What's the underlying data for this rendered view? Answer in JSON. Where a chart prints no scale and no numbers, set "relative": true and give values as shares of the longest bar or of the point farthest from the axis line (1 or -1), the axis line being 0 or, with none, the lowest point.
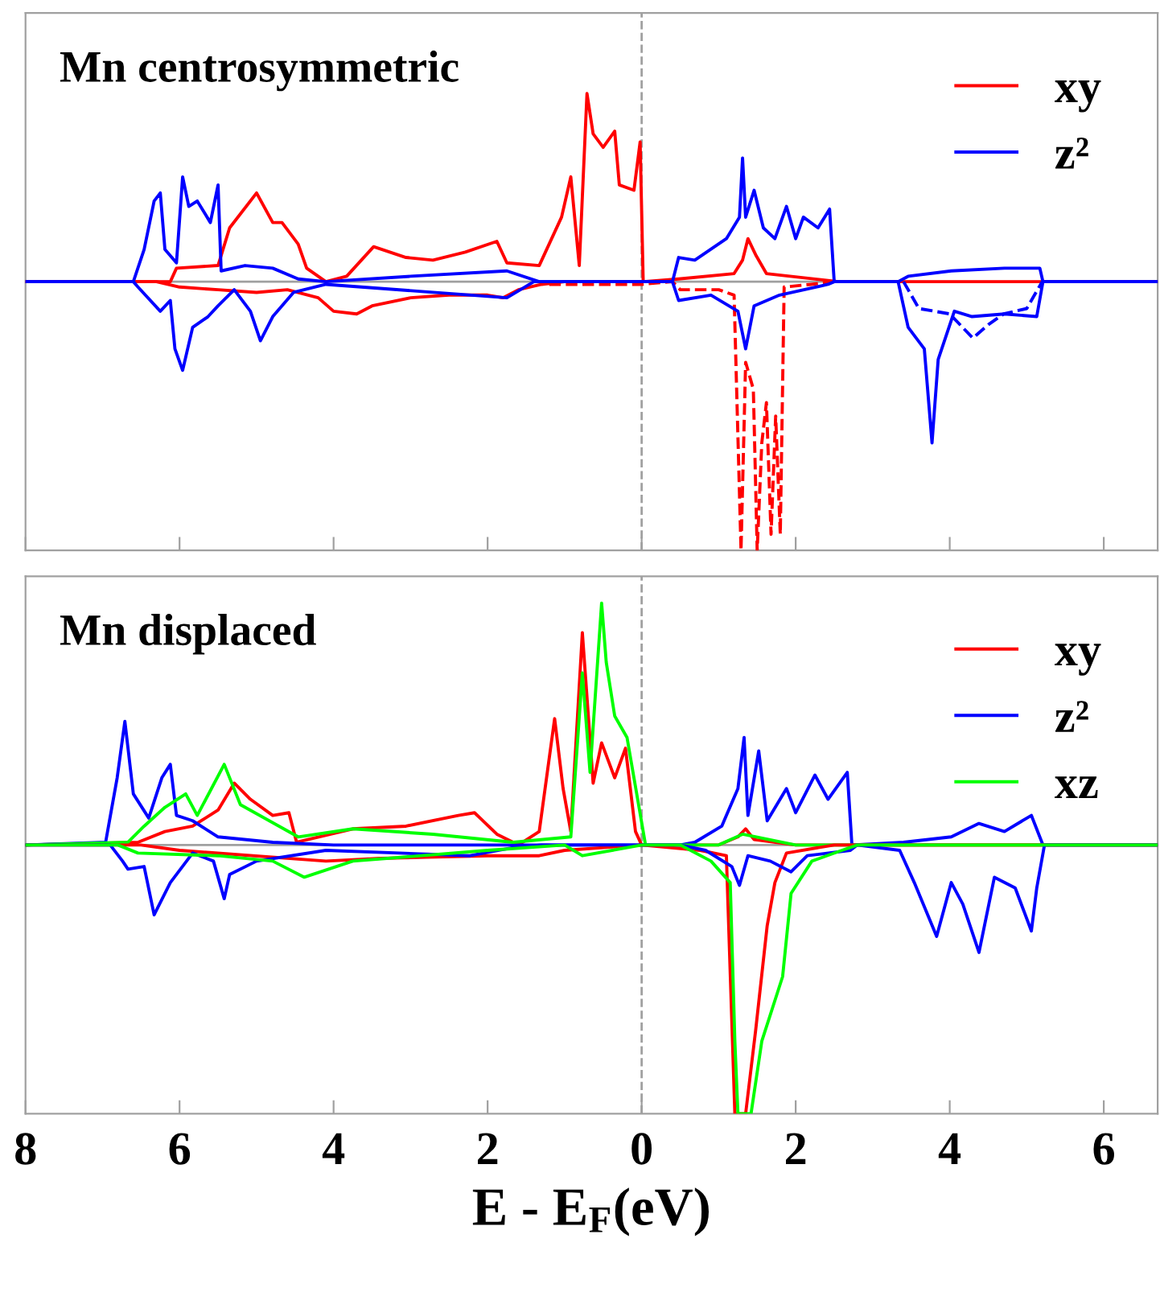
{
  "chart_data": [
    {
      "type": "line",
      "title": "Mn centrosymmetric",
      "relative": true,
      "xlim": [
        -8,
        6.7
      ],
      "xticks": [
        {
          "value": -8,
          "label": null
        },
        {
          "value": -6,
          "label": null
        },
        {
          "value": -4,
          "label": null
        },
        {
          "value": -2,
          "label": null
        },
        {
          "value": 0,
          "label": null
        },
        {
          "value": 2,
          "label": null
        },
        {
          "value": 4,
          "label": null
        },
        {
          "value": 6,
          "label": null
        }
      ],
      "tick_labels": false,
      "grid": false,
      "legend": "top right",
      "ref_lines": [
        {
          "axis": "y",
          "value": 0,
          "color": "#a0a0a0",
          "line_style": "solid"
        },
        {
          "axis": "x",
          "value": 0,
          "color": "#a0a0a0",
          "line_style": "dashed"
        }
      ],
      "series": [
        {
          "name": "xy",
          "color": "#ff0000",
          "line_style": "solid",
          "x": [
            -8,
            -6.12,
            -6.04,
            -5.5,
            -5.35,
            -5.0,
            -4.79,
            -4.67,
            -4.46,
            -4.35,
            -4.1,
            -3.83,
            -3.48,
            -3.06,
            -2.71,
            -2.29,
            -1.88,
            -1.75,
            -1.33,
            -1.04,
            -0.92,
            -0.81,
            -0.71,
            -0.63,
            -0.5,
            -0.35,
            -0.29,
            -0.1,
            -0.02,
            0.02,
            0.48,
            1.2,
            1.31,
            1.38,
            1.48,
            1.62,
            2.56,
            6.7
          ],
          "values": [
            0,
            0,
            0.05,
            0.06,
            0.2,
            0.33,
            0.22,
            0.22,
            0.14,
            0.05,
            0,
            0.02,
            0.13,
            0.09,
            0.08,
            0.11,
            0.15,
            0.07,
            0.06,
            0.24,
            0.39,
            0.06,
            0.7,
            0.55,
            0.5,
            0.56,
            0.36,
            0.34,
            0.52,
            0,
            0.01,
            0.03,
            0.08,
            0.16,
            0.1,
            0.03,
            0,
            0
          ]
        },
        {
          "color": "#ff0000",
          "line_style": "solid",
          "x": [
            -8,
            -6.3,
            -6.0,
            -5.5,
            -5.0,
            -4.6,
            -4.2,
            -4.0,
            -3.7,
            -3.5,
            -3.0,
            -2.5,
            -2.0,
            -1.8,
            -1.6,
            -1.3,
            -1.0,
            0
          ],
          "values": [
            0,
            0,
            -0.02,
            -0.03,
            -0.04,
            -0.03,
            -0.06,
            -0.11,
            -0.12,
            -0.09,
            -0.06,
            -0.05,
            -0.05,
            -0.06,
            -0.03,
            -0.01,
            0,
            0
          ]
        },
        {
          "color": "#ff0000",
          "line_style": "dashed",
          "x": [
            -1.2,
            0,
            0.4,
            0.5,
            1.0,
            1.2,
            1.29,
            1.35,
            1.45,
            1.5,
            1.56,
            1.62,
            1.68,
            1.74,
            1.8,
            1.85,
            2.2,
            2.5
          ],
          "values": [
            -0.01,
            -0.01,
            0,
            -0.03,
            -0.03,
            -0.05,
            -1,
            -0.3,
            -0.4,
            -1,
            -0.6,
            -0.45,
            -0.94,
            -0.5,
            -0.94,
            -0.02,
            -0.01,
            0
          ]
        },
        {
          "name": "z²",
          "color": "#0000ff",
          "line_style": "solid",
          "x": [
            -8,
            -6.6,
            -6.46,
            -6.33,
            -6.25,
            -6.19,
            -6.04,
            -5.96,
            -5.88,
            -5.77,
            -5.6,
            -5.5,
            -5.46,
            -5.15,
            -4.79,
            -4.46,
            -4.1,
            -3.0,
            -1.75,
            -1.33,
            0.4,
            0.48,
            0.69,
            1.1,
            1.27,
            1.31,
            1.35,
            1.46,
            1.58,
            1.73,
            1.88,
            2.0,
            2.1,
            2.29,
            2.44,
            2.5,
            3.33,
            3.46,
            4.02,
            4.71,
            5.17,
            5.21,
            6.7
          ],
          "values": [
            0,
            0,
            0.12,
            0.3,
            0.33,
            0.12,
            0.07,
            0.39,
            0.28,
            0.3,
            0.22,
            0.36,
            0.04,
            0.06,
            0.05,
            0.01,
            0,
            0.02,
            0.04,
            0,
            0,
            0.09,
            0.08,
            0.16,
            0.24,
            0.46,
            0.24,
            0.34,
            0.2,
            0.16,
            0.28,
            0.16,
            0.24,
            0.2,
            0.27,
            0,
            0,
            0.02,
            0.04,
            0.05,
            0.05,
            0,
            0
          ]
        },
        {
          "color": "#0000ff",
          "line_style": "solid",
          "x": [
            -8,
            -6.6,
            -6.54,
            -6.25,
            -6.12,
            -6.06,
            -5.96,
            -5.83,
            -5.63,
            -5.5,
            -5.29,
            -5.08,
            -4.95,
            -4.79,
            -4.52,
            -4.1,
            -1.75,
            -1.4,
            0.4,
            0.48,
            0.9,
            1.25,
            1.35,
            1.46,
            1.79,
            2.42,
            2.5,
            3.33,
            3.46,
            3.67,
            3.77,
            3.85,
            4.06,
            4.29,
            4.71,
            5.13,
            5.21,
            6.7
          ],
          "values": [
            0,
            0,
            -0.02,
            -0.11,
            -0.07,
            -0.25,
            -0.33,
            -0.17,
            -0.13,
            -0.09,
            -0.03,
            -0.11,
            -0.22,
            -0.13,
            -0.04,
            -0.01,
            -0.06,
            0,
            0,
            -0.07,
            -0.05,
            -0.11,
            -0.25,
            -0.09,
            -0.05,
            -0.01,
            0,
            0,
            -0.17,
            -0.25,
            -0.6,
            -0.29,
            -0.11,
            -0.13,
            -0.12,
            -0.13,
            0,
            0
          ]
        },
        {
          "color": "#0000ff",
          "line_style": "dashed",
          "x": [
            3.4,
            3.6,
            4.0,
            4.3,
            4.5,
            4.7,
            5.0,
            5.2
          ],
          "values": [
            0,
            -0.1,
            -0.12,
            -0.21,
            -0.16,
            -0.12,
            -0.1,
            0
          ]
        }
      ]
    },
    {
      "type": "line",
      "title": "Mn displaced",
      "relative": true,
      "xlim": [
        -8,
        6.7
      ],
      "xticks": [
        {
          "value": -8,
          "label": "8"
        },
        {
          "value": -6,
          "label": "6"
        },
        {
          "value": -4,
          "label": "4"
        },
        {
          "value": -2,
          "label": "2"
        },
        0,
        2,
        4,
        6
      ],
      "tick_labels": "x",
      "xlabel": "E - E$_{F}$(eV)",
      "grid": false,
      "legend": "top right",
      "ref_lines": [
        {
          "axis": "y",
          "value": 0,
          "color": "#a0a0a0",
          "line_style": "solid"
        },
        {
          "axis": "x",
          "value": 0,
          "color": "#a0a0a0",
          "line_style": "dashed"
        }
      ],
      "series": [
        {
          "name": "xy",
          "color": "#ff0000",
          "line_style": "solid",
          "x": [
            -8,
            -6.54,
            -6.19,
            -5.83,
            -5.5,
            -5.29,
            -5.08,
            -4.79,
            -4.58,
            -4.48,
            -3.75,
            -3.06,
            -2.38,
            -2.17,
            -1.88,
            -1.6,
            -1.33,
            -1.13,
            -1.02,
            -0.92,
            -0.77,
            -0.63,
            -0.52,
            -0.35,
            -0.21,
            -0.08,
            0,
            1.0,
            1.25,
            1.35,
            1.46,
            2.0,
            6.7
          ],
          "values": [
            0,
            0.01,
            0.05,
            0.07,
            0.13,
            0.23,
            0.17,
            0.11,
            0.12,
            0.01,
            0.06,
            0.07,
            0.11,
            0.12,
            0.04,
            0,
            0.05,
            0.47,
            0.21,
            0.05,
            0.79,
            0.23,
            0.38,
            0.25,
            0.36,
            0.05,
            0,
            0,
            0.03,
            0.06,
            0.02,
            0,
            0
          ]
        },
        {
          "name": "z²",
          "color": "#0000ff",
          "line_style": "solid",
          "x": [
            -8,
            -6.96,
            -6.81,
            -6.71,
            -6.6,
            -6.4,
            -6.23,
            -6.12,
            -6.04,
            -5.83,
            -5.5,
            -4.79,
            -4.0,
            0.5,
            0.69,
            1.04,
            1.25,
            1.33,
            1.38,
            1.52,
            1.63,
            1.88,
            2.0,
            2.25,
            2.42,
            2.67,
            2.73,
            3.4,
            4.02,
            4.38,
            4.71,
            5.06,
            5.21,
            6.7
          ],
          "values": [
            0,
            0.01,
            0.25,
            0.46,
            0.19,
            0.1,
            0.25,
            0.3,
            0.11,
            0.09,
            0.03,
            0.01,
            0,
            0,
            0.01,
            0.07,
            0.21,
            0.4,
            0.11,
            0.35,
            0.09,
            0.21,
            0.12,
            0.26,
            0.17,
            0.27,
            0,
            0.01,
            0.03,
            0.08,
            0.05,
            0.11,
            0,
            0
          ]
        },
        {
          "name": "xz",
          "color": "#00ff00",
          "line_style": "solid",
          "x": [
            -8,
            -6.67,
            -6.46,
            -6.19,
            -5.92,
            -5.77,
            -5.42,
            -5.21,
            -4.46,
            -3.75,
            -2.71,
            -1.67,
            -0.92,
            -0.77,
            -0.67,
            -0.52,
            -0.46,
            -0.35,
            -0.19,
            -0.04,
            0.05,
            1.0,
            1.31,
            2.0,
            6.7
          ],
          "values": [
            0,
            0.01,
            0.07,
            0.14,
            0.19,
            0.11,
            0.3,
            0.15,
            0.03,
            0.06,
            0.04,
            0.01,
            0.03,
            0.64,
            0.27,
            0.9,
            0.68,
            0.48,
            0.4,
            0.15,
            0,
            0,
            0.04,
            0,
            0
          ]
        },
        {
          "color": "#ff0000",
          "line_style": "solid",
          "x": [
            -8,
            -6.5,
            -6.0,
            -4.1,
            -3.4,
            -2.0,
            -1.33,
            -1.0,
            0,
            0.76,
            1.1,
            1.21,
            1.35,
            1.48,
            1.63,
            1.73,
            1.88,
            2.5,
            6.7
          ],
          "values": [
            0,
            0,
            -0.02,
            -0.06,
            -0.05,
            -0.04,
            -0.04,
            -0.02,
            0,
            -0.02,
            -0.04,
            -1,
            -1,
            -0.69,
            -0.3,
            -0.14,
            -0.03,
            0,
            0
          ]
        },
        {
          "color": "#0000ff",
          "line_style": "solid",
          "x": [
            -8,
            -6.9,
            -6.74,
            -6.67,
            -6.46,
            -6.33,
            -6.12,
            -5.83,
            -5.56,
            -5.42,
            -5.35,
            -5.0,
            -4.1,
            -2.23,
            -1.67,
            -1.3,
            0.5,
            0.83,
            1.17,
            1.27,
            1.38,
            1.67,
            1.94,
            2.15,
            2.71,
            2.8,
            3.35,
            3.54,
            3.83,
            4.02,
            4.17,
            4.38,
            4.58,
            4.85,
            5.06,
            5.13,
            5.23,
            6.7
          ],
          "values": [
            0,
            0,
            -0.06,
            -0.09,
            -0.08,
            -0.26,
            -0.14,
            -0.03,
            -0.06,
            -0.2,
            -0.11,
            -0.06,
            -0.02,
            -0.04,
            -0.01,
            0,
            0,
            -0.02,
            -0.08,
            -0.15,
            -0.04,
            -0.06,
            -0.1,
            -0.04,
            -0.02,
            0,
            -0.02,
            -0.14,
            -0.34,
            -0.14,
            -0.22,
            -0.4,
            -0.12,
            -0.16,
            -0.32,
            -0.16,
            0,
            0
          ]
        },
        {
          "color": "#00ff00",
          "line_style": "solid",
          "x": [
            -8,
            -6.8,
            -6.54,
            -5.5,
            -4.79,
            -4.38,
            -3.75,
            -2.0,
            -1.0,
            -0.77,
            0,
            0.5,
            0.9,
            1.15,
            1.21,
            1.25,
            1.42,
            1.56,
            1.83,
            1.94,
            2.21,
            2.6,
            2.8,
            6.7
          ],
          "values": [
            0,
            0,
            -0.03,
            -0.04,
            -0.06,
            -0.12,
            -0.06,
            -0.02,
            0,
            -0.04,
            0,
            0,
            -0.06,
            -0.14,
            -0.73,
            -1,
            -1,
            -0.73,
            -0.49,
            -0.18,
            -0.06,
            -0.02,
            0,
            0
          ]
        }
      ]
    }
  ]
}
